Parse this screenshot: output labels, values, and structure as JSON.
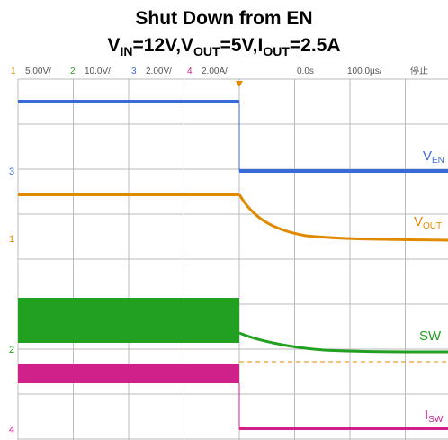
{
  "title": "Shut Down from EN",
  "subtitle": [
    "V",
    "IN",
    "=12V,V",
    "OUT",
    "=5V,I",
    "OUT",
    "=2.5A"
  ],
  "header": {
    "ch1": "1",
    "ch1_scale": "5.00V/",
    "ch2": "2",
    "ch2_scale": "10.0V/",
    "ch3": "3",
    "ch3_scale": "2.00V/",
    "ch4": "4",
    "ch4_scale": "2.00A/",
    "time_offset": "0.0s",
    "time_scale": "100.0µs/",
    "status": "停止"
  },
  "markers": {
    "ch3": "3",
    "ch1": "1",
    "ch2": "2",
    "ch4": "4"
  },
  "labels": {
    "ven": [
      "V",
      "EN"
    ],
    "vout": [
      "V",
      "OUT"
    ],
    "sw": "SW",
    "isw": [
      "I",
      "SW"
    ]
  }
}
